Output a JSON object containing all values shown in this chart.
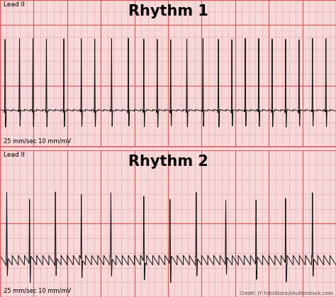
{
  "title1": "Rhythm 1",
  "title2": "Rhythm 2",
  "lead_label": "Lead II",
  "scale_label": "25 mm/sec 10 mm/mV",
  "credit": "Credit: JY FotoStock/shutterstock.com",
  "panel_bg": "#f7d8d8",
  "grid_major_color": "#d46060",
  "grid_minor_color": "#e8a8a8",
  "ecg_color": "#111111",
  "rhythm1_qrs_times": [
    0.15,
    0.58,
    0.98,
    1.38,
    1.9,
    2.42,
    2.82,
    3.32,
    3.82,
    4.28,
    4.68,
    5.08,
    5.56,
    6.04,
    6.5,
    6.9,
    7.3,
    7.7,
    8.1,
    8.5,
    8.9,
    9.3,
    9.7
  ],
  "rhythm1_qrs_amp": 1.2,
  "rhythm1_flutter_amp": 0.025,
  "rhythm2_qrs_times": [
    0.2,
    0.88,
    1.65,
    2.42,
    3.3,
    4.28,
    5.06,
    5.84,
    6.72,
    7.62,
    8.5,
    9.3
  ],
  "rhythm2_qrs_amp": 0.9,
  "rhythm2_flutter_amp": 0.13,
  "flutter_freq": 5.5,
  "fs": 2000,
  "total_time": 10.0,
  "ecg_linewidth": 0.7
}
